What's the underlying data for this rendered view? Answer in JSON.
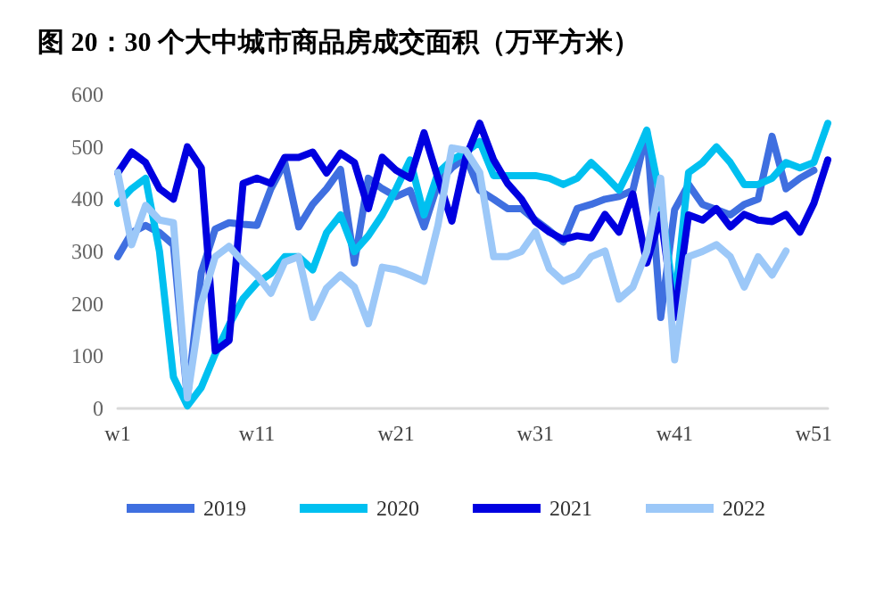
{
  "chart_data": {
    "type": "line",
    "title": "图 20：30 个大中城市商品房成交面积（万平方米）",
    "categories": [
      "w1",
      null,
      null,
      null,
      null,
      null,
      null,
      null,
      null,
      null,
      "w11",
      null,
      null,
      null,
      null,
      null,
      null,
      null,
      null,
      null,
      "w21",
      null,
      null,
      null,
      null,
      null,
      null,
      null,
      null,
      null,
      "w31",
      null,
      null,
      null,
      null,
      null,
      null,
      null,
      null,
      null,
      "w41",
      null,
      null,
      null,
      null,
      null,
      null,
      null,
      null,
      null,
      "w51",
      null
    ],
    "series": [
      {
        "name": "2019",
        "color": "#3f6fe0",
        "values": [
          290,
          336,
          350,
          336,
          313,
          20,
          260,
          343,
          355,
          352,
          350,
          420,
          470,
          347,
          390,
          420,
          457,
          278,
          440,
          420,
          405,
          417,
          347,
          430,
          460,
          480,
          417,
          400,
          382,
          382,
          360,
          340,
          318,
          382,
          390,
          400,
          405,
          417,
          530,
          174,
          380,
          428,
          390,
          380,
          370,
          390,
          400,
          520,
          420,
          440,
          455,
          null
        ]
      },
      {
        "name": "2020",
        "color": "#00c0f0",
        "values": [
          392,
          420,
          440,
          300,
          60,
          5,
          40,
          104,
          160,
          210,
          240,
          258,
          290,
          290,
          265,
          336,
          370,
          300,
          330,
          370,
          420,
          475,
          370,
          450,
          475,
          490,
          510,
          445,
          445,
          445,
          445,
          440,
          428,
          440,
          470,
          445,
          417,
          470,
          532,
          400,
          200,
          451,
          470,
          500,
          470,
          428,
          428,
          440,
          470,
          460,
          470,
          545
        ]
      },
      {
        "name": "2021",
        "color": "#0000e0",
        "values": [
          450,
          490,
          470,
          420,
          400,
          500,
          460,
          110,
          130,
          430,
          440,
          430,
          480,
          480,
          490,
          450,
          488,
          470,
          382,
          480,
          455,
          440,
          527,
          440,
          358,
          480,
          545,
          475,
          430,
          400,
          357,
          337,
          323,
          330,
          326,
          371,
          337,
          410,
          278,
          370,
          174,
          370,
          360,
          382,
          347,
          371,
          360,
          357,
          371,
          337,
          392,
          475
        ]
      },
      {
        "name": "2022",
        "color": "#9cc8f8",
        "values": [
          451,
          313,
          388,
          360,
          355,
          20,
          200,
          290,
          310,
          280,
          255,
          220,
          280,
          290,
          174,
          230,
          255,
          232,
          162,
          270,
          265,
          255,
          243,
          350,
          498,
          493,
          451,
          290,
          290,
          300,
          338,
          267,
          243,
          255,
          290,
          301,
          209,
          232,
          300,
          440,
          93,
          290,
          300,
          313,
          290,
          232,
          290,
          255,
          301,
          null,
          null,
          null
        ]
      }
    ],
    "ylim": [
      0,
      600
    ],
    "yticks": [
      0,
      100,
      200,
      300,
      400,
      500,
      600
    ],
    "grid": false,
    "legend": "bottom",
    "marker": "none",
    "line_style": "solid"
  }
}
